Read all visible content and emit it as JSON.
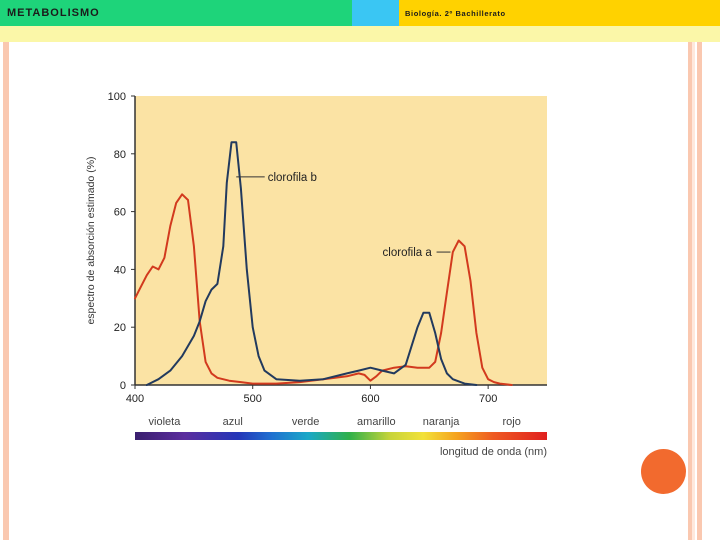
{
  "header": {
    "title": "METABOLISMO",
    "subtitle": "Biología. 2º Bachillerato"
  },
  "colors": {
    "header_green": "#1ed47a",
    "header_blue": "#3ac6f3",
    "header_yellow": "#ffd200",
    "plot_background": "#fbe3a4",
    "clorofila_a": "#d23a1e",
    "clorofila_b": "#223a5e",
    "accent_circle": "#f26a2e"
  },
  "chart_data": {
    "type": "line",
    "title": "",
    "xlabel": "longitud de onda (nm)",
    "ylabel": "espectro de absorción estimado (%)",
    "xlim": [
      400,
      750
    ],
    "ylim": [
      0,
      100
    ],
    "x_ticks": [
      "400",
      "500",
      "600",
      "700"
    ],
    "y_ticks": [
      "0",
      "20",
      "40",
      "60",
      "80",
      "100"
    ],
    "color_bands": [
      "violeta",
      "azul",
      "verde",
      "amarillo",
      "naranja",
      "rojo"
    ],
    "series": [
      {
        "name": "clorofila a",
        "x": [
          400,
          405,
          410,
          415,
          420,
          425,
          430,
          435,
          440,
          445,
          450,
          455,
          460,
          465,
          470,
          480,
          490,
          500,
          520,
          540,
          560,
          580,
          590,
          595,
          600,
          605,
          610,
          620,
          630,
          640,
          650,
          655,
          660,
          665,
          670,
          675,
          680,
          685,
          690,
          695,
          700,
          705,
          710,
          720
        ],
        "y": [
          30,
          34,
          38,
          41,
          40,
          44,
          55,
          63,
          66,
          64,
          48,
          22,
          8,
          4,
          2.5,
          1.5,
          1,
          0.5,
          0.5,
          1,
          2,
          3,
          4,
          3.5,
          1.5,
          3,
          5,
          6,
          6.5,
          6,
          6,
          8,
          18,
          32,
          46,
          50,
          48,
          36,
          18,
          6,
          2,
          1,
          0.5,
          0
        ]
      },
      {
        "name": "clorofila b",
        "x": [
          410,
          420,
          430,
          440,
          450,
          455,
          460,
          465,
          470,
          475,
          478,
          482,
          486,
          490,
          495,
          500,
          505,
          510,
          520,
          540,
          560,
          580,
          590,
          600,
          610,
          620,
          630,
          640,
          645,
          650,
          655,
          660,
          665,
          670,
          680,
          690
        ],
        "y": [
          0,
          2,
          5,
          10,
          17,
          22,
          29,
          33,
          35,
          48,
          70,
          84,
          84,
          68,
          40,
          20,
          10,
          5,
          2,
          1.5,
          2,
          4,
          5,
          6,
          5,
          4,
          7,
          20,
          25,
          25,
          18,
          9,
          4,
          2,
          0.5,
          0
        ]
      }
    ],
    "annotations": [
      "clorofila b",
      "clorofila a"
    ]
  }
}
